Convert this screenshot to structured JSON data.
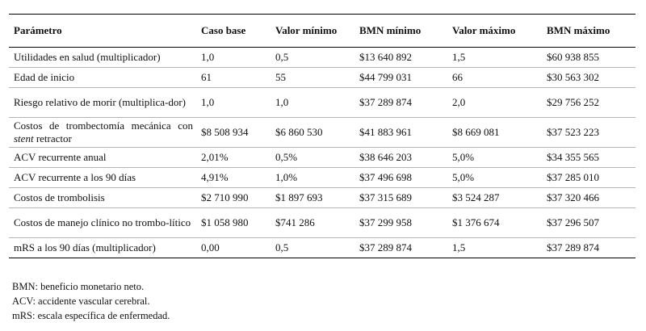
{
  "table": {
    "headers": [
      "Parámetro",
      "Caso base",
      "Valor mínimo",
      "BMN mínimo",
      "Valor máximo",
      "BMN máximo"
    ],
    "rows": [
      {
        "param_parts": [
          "Utilidades en salud (multiplicador)"
        ],
        "base": "1,0",
        "min": "0,5",
        "bmn_min": "$13 640 892",
        "max": "1,5",
        "bmn_max": "$60 938 855"
      },
      {
        "param_parts": [
          "Edad de inicio"
        ],
        "base": "61",
        "min": "55",
        "bmn_min": "$44 799 031",
        "max": "66",
        "bmn_max": "$30 563 302"
      },
      {
        "param_parts": [
          "Riesgo relativo de morir (multiplica-dor)"
        ],
        "base": "1,0",
        "min": "1,0",
        "bmn_min": "$37 289 874",
        "max": "2,0",
        "bmn_max": "$29 756 252"
      },
      {
        "param_parts": [
          "Costos de trombectomía mecánica con ",
          "stent",
          " retractor"
        ],
        "base": "$8 508 934",
        "min": "$6 860 530",
        "bmn_min": "$41 883 961",
        "max": "$8 669 081",
        "bmn_max": "$37 523 223"
      },
      {
        "param_parts": [
          "ACV recurrente anual"
        ],
        "base": "2,01%",
        "min": "0,5%",
        "bmn_min": "$38 646 203",
        "max": "5,0%",
        "bmn_max": "$34 355 565"
      },
      {
        "param_parts": [
          "ACV recurrente a los 90 días"
        ],
        "base": "4,91%",
        "min": "1,0%",
        "bmn_min": "$37 496 698",
        "max": "5,0%",
        "bmn_max": "$37 285 010"
      },
      {
        "param_parts": [
          "Costos de trombolisis"
        ],
        "base": "$2 710 990",
        "min": "$1 897 693",
        "bmn_min": "$37 315 689",
        "max": "$3 524 287",
        "bmn_max": "$37 320 466"
      },
      {
        "param_parts": [
          "Costos de manejo clínico no trombo-lítico"
        ],
        "base": "$1 058 980",
        "min": "$741 286",
        "bmn_min": "$37 299 958",
        "max": "$1 376 674",
        "bmn_max": "$37 296 507"
      },
      {
        "param_parts": [
          "mRS a los 90 días (multiplicador)"
        ],
        "base": "0,00",
        "min": "0,5",
        "bmn_min": "$37 289 874",
        "max": "1,5",
        "bmn_max": "$37 289 874"
      }
    ]
  },
  "footnotes": [
    "BMN: beneficio monetario neto.",
    "ACV: accidente vascular cerebral.",
    "mRS: escala específica de enfermedad."
  ]
}
